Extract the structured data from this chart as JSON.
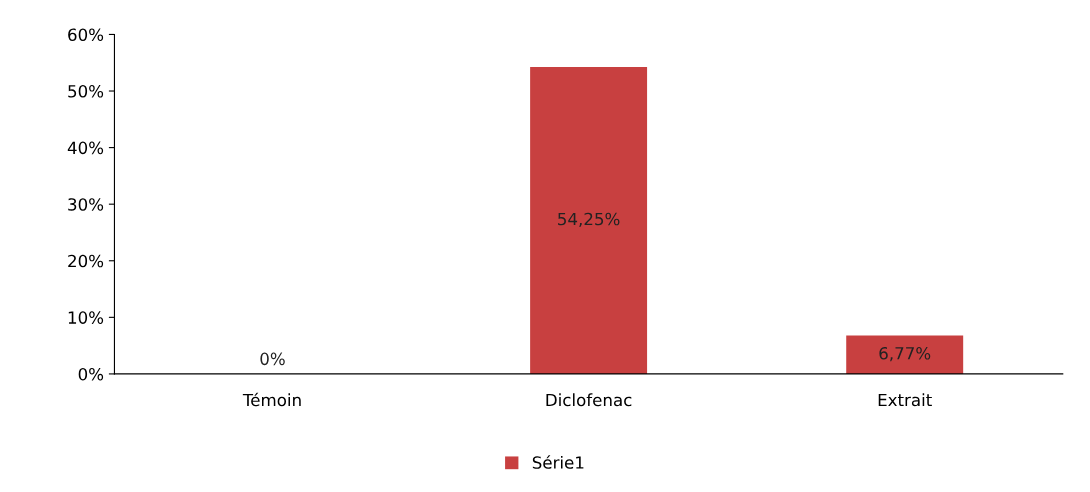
{
  "chart_data": {
    "type": "bar",
    "categories": [
      "Témoin",
      "Diclofenac",
      "Extrait"
    ],
    "series": [
      {
        "name": "Série1",
        "color": "#c84040",
        "values": [
          0,
          54.25,
          6.77
        ],
        "value_labels": [
          "0%",
          "54,25%",
          "6,77%"
        ]
      }
    ],
    "ylim": [
      0,
      60
    ],
    "yticks": [
      {
        "value": 0,
        "label": "0%"
      },
      {
        "value": 10,
        "label": "10%"
      },
      {
        "value": 20,
        "label": "20%"
      },
      {
        "value": 30,
        "label": "30%"
      },
      {
        "value": 40,
        "label": "40%"
      },
      {
        "value": 50,
        "label": "50%"
      },
      {
        "value": 60,
        "label": "60%"
      }
    ],
    "grid": false,
    "legend": "bottom"
  }
}
